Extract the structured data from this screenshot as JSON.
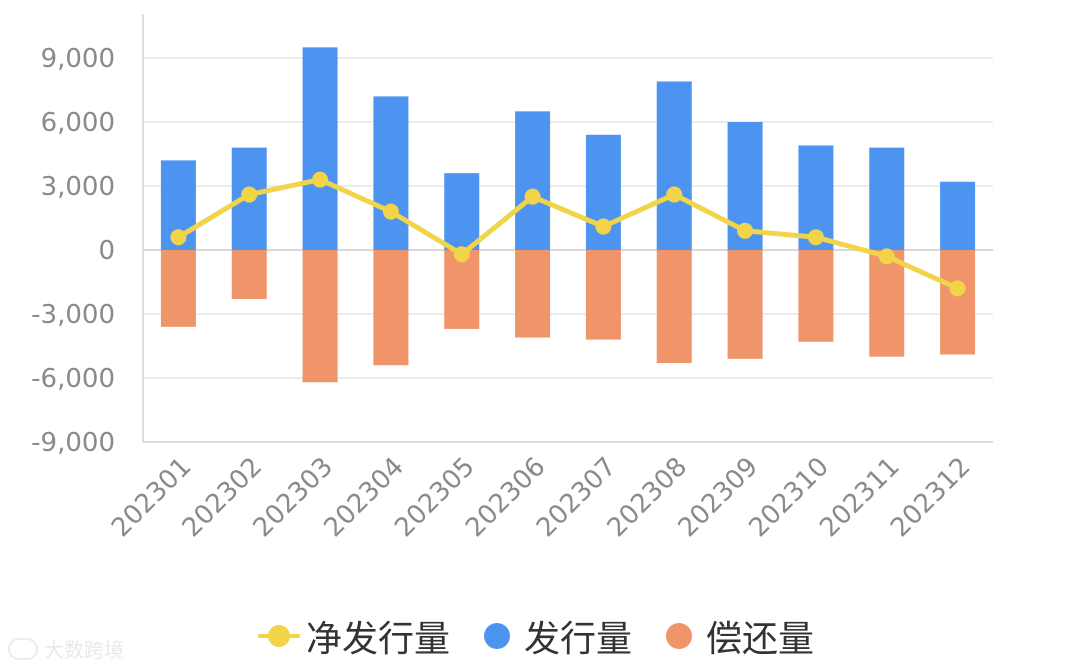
{
  "chart_data": {
    "type": "bar",
    "categories": [
      "202301",
      "202302",
      "202303",
      "202304",
      "202305",
      "202306",
      "202307",
      "202308",
      "202309",
      "202310",
      "202311",
      "202312"
    ],
    "series": [
      {
        "name": "净发行量",
        "kind": "line",
        "color": "#f1d448",
        "values": [
          600,
          2600,
          3300,
          1800,
          -200,
          2500,
          1100,
          2600,
          900,
          600,
          -300,
          -1800
        ]
      },
      {
        "name": "发行量",
        "kind": "bar",
        "color": "#4d94f0",
        "values": [
          4200,
          4800,
          9500,
          7200,
          3600,
          6500,
          5400,
          7900,
          6000,
          4900,
          4800,
          3200
        ]
      },
      {
        "name": "偿还量",
        "kind": "bar",
        "color": "#f0946a",
        "values": [
          -3600,
          -2300,
          -6200,
          -5400,
          -3700,
          -4100,
          -4200,
          -5300,
          -5100,
          -4300,
          -5000,
          -4900
        ]
      }
    ],
    "ylim": [
      -9000,
      9000
    ],
    "yticks": [
      -9000,
      -6000,
      -3000,
      0,
      3000,
      6000,
      9000
    ],
    "ytick_labels": [
      "-9,000",
      "-6,000",
      "-3,000",
      "0",
      "3,000",
      "6,000",
      "9,000"
    ],
    "grid": true,
    "legend": "bottom",
    "title": "",
    "xlabel": "",
    "ylabel": ""
  },
  "watermark": {
    "text": "大数跨境",
    "icon": "eye-logo-icon"
  }
}
